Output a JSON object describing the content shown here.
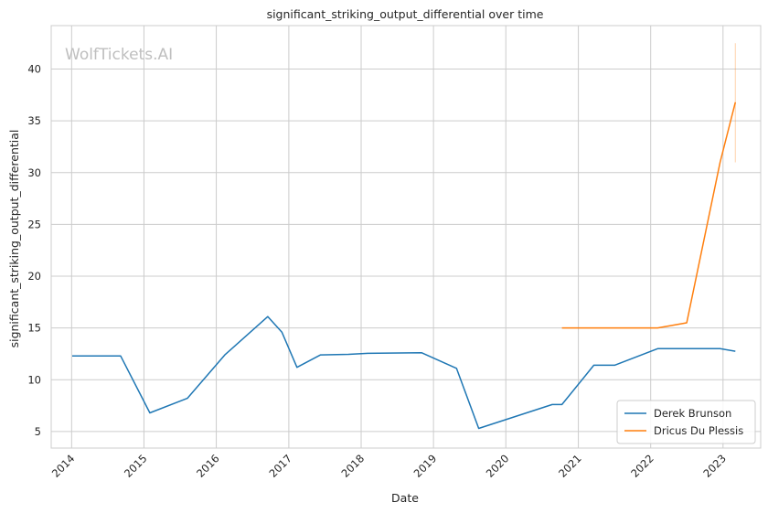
{
  "chart_data": {
    "type": "line",
    "title": "significant_striking_output_differential over time",
    "xlabel": "Date",
    "ylabel": "significant_striking_output_differential",
    "watermark": "WolfTickets.AI",
    "x_ticks": [
      "2014",
      "2015",
      "2016",
      "2017",
      "2018",
      "2019",
      "2020",
      "2021",
      "2022",
      "2023"
    ],
    "y_ticks": [
      "5",
      "10",
      "15",
      "20",
      "25",
      "30",
      "35",
      "40"
    ],
    "xlim": [
      "2013-09-20",
      "2023-07-10"
    ],
    "ylim": [
      3.4,
      44.2
    ],
    "grid": true,
    "legend": "bottom-right",
    "series": [
      {
        "name": "Derek Brunson",
        "color": "#1f77b4",
        "points": [
          [
            "2014-01-04",
            12.3
          ],
          [
            "2014-09-05",
            12.3
          ],
          [
            "2015-01-31",
            6.8
          ],
          [
            "2015-08-08",
            8.2
          ],
          [
            "2016-02-13",
            12.4
          ],
          [
            "2016-09-17",
            16.1
          ],
          [
            "2016-11-27",
            14.6
          ],
          [
            "2017-02-11",
            11.2
          ],
          [
            "2017-06-10",
            12.4
          ],
          [
            "2017-10-28",
            12.45
          ],
          [
            "2018-02-03",
            12.55
          ],
          [
            "2018-11-03",
            12.6
          ],
          [
            "2019-04-27",
            11.1
          ],
          [
            "2019-08-17",
            5.3
          ],
          [
            "2020-08-22",
            7.6
          ],
          [
            "2020-10-10",
            7.6
          ],
          [
            "2021-03-20",
            11.4
          ],
          [
            "2021-07-03",
            11.4
          ],
          [
            "2022-02-05",
            13.0
          ],
          [
            "2022-12-17",
            13.0
          ],
          [
            "2023-03-04",
            12.75
          ]
        ]
      },
      {
        "name": "Dricus Du Plessis",
        "color": "#ff7f0e",
        "points": [
          [
            "2020-10-10",
            15.0
          ],
          [
            "2022-02-05",
            15.0
          ],
          [
            "2022-07-02",
            15.5
          ],
          [
            "2022-12-17",
            31.0
          ],
          [
            "2023-03-04",
            36.8
          ]
        ],
        "error_band": {
          "x": "2023-03-04",
          "low": 31.0,
          "high": 42.5
        }
      }
    ]
  }
}
